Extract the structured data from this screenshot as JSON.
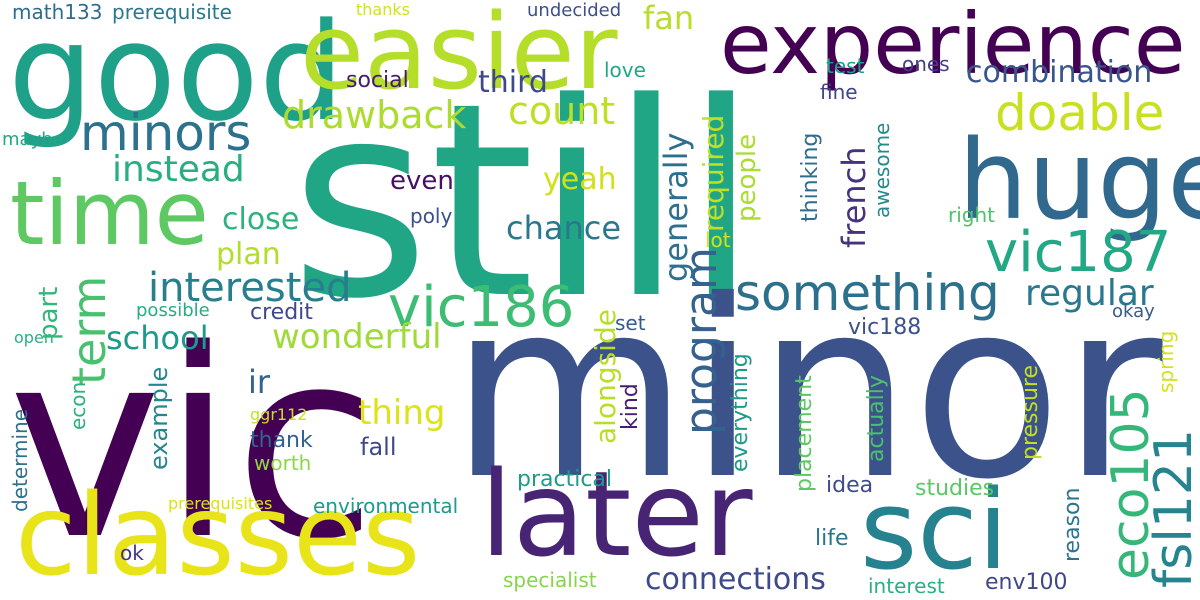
{
  "words": [
    {
      "text": "still",
      "color": "#21a685"
    },
    {
      "text": "minor",
      "color": "#3b528b"
    },
    {
      "text": "vic",
      "color": "#440154"
    },
    {
      "text": "good",
      "color": "#1fa088"
    },
    {
      "text": "easier",
      "color": "#b5de2b"
    },
    {
      "text": "experience",
      "color": "#440154"
    },
    {
      "text": "time",
      "color": "#5ec962"
    },
    {
      "text": "huge",
      "color": "#31688e"
    },
    {
      "text": "minors",
      "color": "#2c728e"
    },
    {
      "text": "classes",
      "color": "#e8e419"
    },
    {
      "text": "later",
      "color": "#482475"
    },
    {
      "text": "sci",
      "color": "#26828e"
    },
    {
      "text": "vic187",
      "color": "#22a884"
    },
    {
      "text": "vic186",
      "color": "#3dbc74"
    },
    {
      "text": "something",
      "color": "#2d708e"
    },
    {
      "text": "doable",
      "color": "#c8e020"
    },
    {
      "text": "eco105",
      "color": "#35b779"
    },
    {
      "text": "fsl121",
      "color": "#25848e"
    },
    {
      "text": "term",
      "color": "#48c16e"
    },
    {
      "text": "program",
      "color": "#34618d"
    },
    {
      "text": "regular",
      "color": "#2a788e"
    },
    {
      "text": "interested",
      "color": "#277f8e"
    },
    {
      "text": "combination",
      "color": "#39568c"
    },
    {
      "text": "drawback",
      "color": "#addc30"
    },
    {
      "text": "count",
      "color": "#bddf26"
    },
    {
      "text": "third",
      "color": "#3e4989"
    },
    {
      "text": "fan",
      "color": "#b8de29"
    },
    {
      "text": "instead",
      "color": "#29af7f"
    },
    {
      "text": "generally",
      "color": "#2e6e8e"
    },
    {
      "text": "french",
      "color": "#46327e"
    },
    {
      "text": "chance",
      "color": "#2a788e"
    },
    {
      "text": "yeah",
      "color": "#d0e11c"
    },
    {
      "text": "close",
      "color": "#2db27d"
    },
    {
      "text": "plan",
      "color": "#b2dd2d"
    },
    {
      "text": "wonderful",
      "color": "#a0da39"
    },
    {
      "text": "school",
      "color": "#1f998a"
    },
    {
      "text": "connections",
      "color": "#3e4a89"
    },
    {
      "text": "thing",
      "color": "#dde318"
    },
    {
      "text": "alongside",
      "color": "#bade28"
    },
    {
      "text": "required",
      "color": "#c0df25"
    },
    {
      "text": "people",
      "color": "#aadc32"
    },
    {
      "text": "even",
      "color": "#471063"
    },
    {
      "text": "social",
      "color": "#481a6c"
    },
    {
      "text": "love",
      "color": "#22a785"
    },
    {
      "text": "test",
      "color": "#1fa187"
    },
    {
      "text": "ones",
      "color": "#424086"
    },
    {
      "text": "fine",
      "color": "#404688"
    },
    {
      "text": "thinking",
      "color": "#2f6c8e"
    },
    {
      "text": "awesome",
      "color": "#23898e"
    },
    {
      "text": "right",
      "color": "#4ec36b"
    },
    {
      "text": "lot",
      "color": "#d5e21a"
    },
    {
      "text": "poly",
      "color": "#3c4f8a"
    },
    {
      "text": "ir",
      "color": "#32658e"
    },
    {
      "text": "example",
      "color": "#24878e"
    },
    {
      "text": "part",
      "color": "#33b67a"
    },
    {
      "text": "credit",
      "color": "#3f4889"
    },
    {
      "text": "possible",
      "color": "#26ad81"
    },
    {
      "text": "set",
      "color": "#365c8d"
    },
    {
      "text": "vic188",
      "color": "#3c508b"
    },
    {
      "text": "okay",
      "color": "#375a8c"
    },
    {
      "text": "spring",
      "color": "#d2e21b"
    },
    {
      "text": "pressure",
      "color": "#c2df23"
    },
    {
      "text": "reason",
      "color": "#2b758e"
    },
    {
      "text": "studies",
      "color": "#5ac864"
    },
    {
      "text": "idea",
      "color": "#3d4d8a"
    },
    {
      "text": "placement",
      "color": "#5cc863"
    },
    {
      "text": "actually",
      "color": "#4ac16d"
    },
    {
      "text": "everything",
      "color": "#1f9a8a"
    },
    {
      "text": "kind",
      "color": "#481f70"
    },
    {
      "text": "practical",
      "color": "#1e9c89"
    },
    {
      "text": "life",
      "color": "#2b748e"
    },
    {
      "text": "interest",
      "color": "#29af7f"
    },
    {
      "text": "env100",
      "color": "#3f4788"
    },
    {
      "text": "specialist",
      "color": "#86d549"
    },
    {
      "text": "environmental",
      "color": "#1e9b8a"
    },
    {
      "text": "fall",
      "color": "#3f4889"
    },
    {
      "text": "thank",
      "color": "#33638d"
    },
    {
      "text": "worth",
      "color": "#8ed645"
    },
    {
      "text": "ggr112",
      "color": "#c5e021"
    },
    {
      "text": "prerequisites",
      "color": "#d8e219"
    },
    {
      "text": "determine",
      "color": "#2c718e"
    },
    {
      "text": "econ",
      "color": "#2cb17e"
    },
    {
      "text": "open",
      "color": "#2ab07f"
    },
    {
      "text": "ok",
      "color": "#453781"
    },
    {
      "text": "maybe",
      "color": "#22a785"
    },
    {
      "text": "math133",
      "color": "#2e6d8e"
    },
    {
      "text": "prerequisite",
      "color": "#2a788e"
    },
    {
      "text": "thanks",
      "color": "#d2e21b"
    },
    {
      "text": "undecided",
      "color": "#3c4f8a"
    }
  ]
}
